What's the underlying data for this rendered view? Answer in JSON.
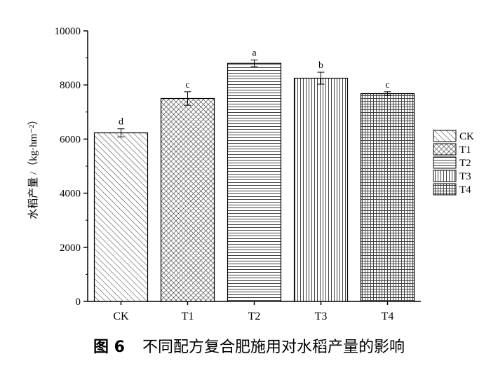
{
  "chart_data": {
    "type": "bar",
    "categories": [
      "CK",
      "T1",
      "T2",
      "T3",
      "T4"
    ],
    "values": [
      6230,
      7500,
      8800,
      8250,
      7680
    ],
    "error": [
      150,
      250,
      120,
      220,
      70
    ],
    "significance": [
      "d",
      "c",
      "a",
      "b",
      "c"
    ],
    "ylabel": "水稻产量 /（kg·hm⁻²）",
    "ylim": [
      0,
      10000
    ],
    "yticks": [
      0,
      2000,
      4000,
      6000,
      8000,
      10000
    ],
    "title": "",
    "legend_position": "right",
    "legend": [
      {
        "label": "CK",
        "pattern": "diag"
      },
      {
        "label": "T1",
        "pattern": "cross"
      },
      {
        "label": "T2",
        "pattern": "hlines"
      },
      {
        "label": "T3",
        "pattern": "vlines"
      },
      {
        "label": "T4",
        "pattern": "grid"
      }
    ],
    "patterns": [
      "diag",
      "cross",
      "hlines",
      "vlines",
      "grid"
    ],
    "grid": false
  },
  "caption": {
    "prefix": "图 6",
    "text": "不同配方复合肥施用对水稻产量的影响"
  }
}
